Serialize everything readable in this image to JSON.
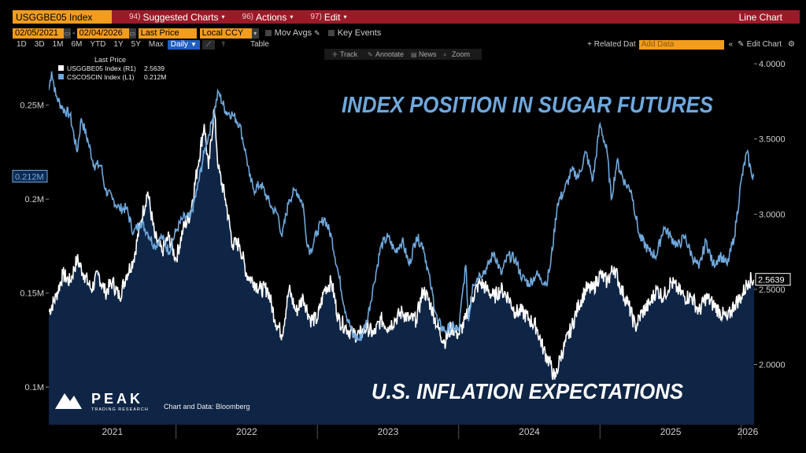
{
  "toolbar": {
    "ticker": "USGGBE05 Index",
    "menus": [
      {
        "num": "94)",
        "label": "Suggested Charts"
      },
      {
        "num": "96)",
        "label": "Actions"
      },
      {
        "num": "97)",
        "label": "Edit"
      }
    ],
    "chart_type": "Line Chart",
    "date_from": "02/05/2021",
    "date_to": "02/04/2026",
    "price_type": "Last Price",
    "currency": "Local CCY",
    "mov_avgs": "Mov Avgs",
    "key_events": "Key Events",
    "periods": [
      "1D",
      "3D",
      "1M",
      "6M",
      "YTD",
      "1Y",
      "5Y",
      "Max"
    ],
    "frequency": "Daily",
    "table_label": "Table",
    "related_data": "Related Dat",
    "add_data_placeholder": "Add Data",
    "edit_chart": "Edit Chart",
    "tools": [
      "Track",
      "Annotate",
      "News",
      "Zoom"
    ]
  },
  "chart_data": {
    "type": "line",
    "title": "INDEX POSITION IN SUGAR FUTURES",
    "subtitle": "U.S. INFLATION EXPECTATIONS",
    "legend_header": "Last Price",
    "source_note": "Chart and Data: Bloomberg",
    "brand": "PEAK",
    "brand_sub": "TRADING RESEARCH",
    "x_labels": [
      "2021",
      "2022",
      "2023",
      "2024",
      "2025",
      "2026"
    ],
    "left_axis": {
      "ticks": [
        "0.1M",
        "0.15M",
        "0.2M",
        "0.25M"
      ],
      "values": [
        0.1,
        0.15,
        0.2,
        0.25
      ],
      "range": [
        0.08,
        0.28
      ]
    },
    "right_axis": {
      "ticks": [
        "2.0000",
        "2.5000",
        "3.0000",
        "3.5000",
        "4.0000"
      ],
      "values": [
        2.0,
        2.5,
        3.0,
        3.5,
        4.0
      ],
      "range": [
        1.6,
        4.1
      ]
    },
    "x_range": [
      2021.1,
      2026.09
    ],
    "series": [
      {
        "name": "USGGBE05 Index (R1)",
        "axis": "right",
        "color": "#ffffff",
        "last_value": "2.5639",
        "points": [
          [
            2021.1,
            2.35
          ],
          [
            2021.15,
            2.45
          ],
          [
            2021.2,
            2.6
          ],
          [
            2021.25,
            2.55
          ],
          [
            2021.3,
            2.7
          ],
          [
            2021.35,
            2.6
          ],
          [
            2021.4,
            2.5
          ],
          [
            2021.45,
            2.6
          ],
          [
            2021.5,
            2.48
          ],
          [
            2021.55,
            2.55
          ],
          [
            2021.6,
            2.45
          ],
          [
            2021.65,
            2.6
          ],
          [
            2021.7,
            2.7
          ],
          [
            2021.75,
            2.95
          ],
          [
            2021.8,
            3.15
          ],
          [
            2021.85,
            2.85
          ],
          [
            2021.9,
            2.75
          ],
          [
            2021.95,
            2.85
          ],
          [
            2022.0,
            2.7
          ],
          [
            2022.05,
            2.9
          ],
          [
            2022.1,
            3.0
          ],
          [
            2022.15,
            3.3
          ],
          [
            2022.2,
            3.6
          ],
          [
            2022.23,
            3.3
          ],
          [
            2022.27,
            3.7
          ],
          [
            2022.3,
            3.3
          ],
          [
            2022.35,
            3.1
          ],
          [
            2022.4,
            2.8
          ],
          [
            2022.45,
            2.8
          ],
          [
            2022.5,
            2.6
          ],
          [
            2022.55,
            2.55
          ],
          [
            2022.6,
            2.5
          ],
          [
            2022.65,
            2.5
          ],
          [
            2022.7,
            2.3
          ],
          [
            2022.75,
            2.2
          ],
          [
            2022.8,
            2.5
          ],
          [
            2022.85,
            2.35
          ],
          [
            2022.9,
            2.45
          ],
          [
            2022.95,
            2.3
          ],
          [
            2023.0,
            2.3
          ],
          [
            2023.05,
            2.5
          ],
          [
            2023.1,
            2.55
          ],
          [
            2023.15,
            2.3
          ],
          [
            2023.2,
            2.25
          ],
          [
            2023.25,
            2.2
          ],
          [
            2023.3,
            2.2
          ],
          [
            2023.35,
            2.25
          ],
          [
            2023.4,
            2.2
          ],
          [
            2023.45,
            2.3
          ],
          [
            2023.5,
            2.25
          ],
          [
            2023.55,
            2.3
          ],
          [
            2023.6,
            2.35
          ],
          [
            2023.65,
            2.3
          ],
          [
            2023.7,
            2.3
          ],
          [
            2023.75,
            2.5
          ],
          [
            2023.8,
            2.4
          ],
          [
            2023.85,
            2.25
          ],
          [
            2023.9,
            2.15
          ],
          [
            2023.95,
            2.25
          ],
          [
            2024.0,
            2.2
          ],
          [
            2024.05,
            2.3
          ],
          [
            2024.1,
            2.45
          ],
          [
            2024.15,
            2.55
          ],
          [
            2024.2,
            2.5
          ],
          [
            2024.25,
            2.45
          ],
          [
            2024.3,
            2.5
          ],
          [
            2024.35,
            2.45
          ],
          [
            2024.4,
            2.35
          ],
          [
            2024.45,
            2.35
          ],
          [
            2024.5,
            2.3
          ],
          [
            2024.55,
            2.25
          ],
          [
            2024.6,
            2.1
          ],
          [
            2024.65,
            2.0
          ],
          [
            2024.68,
            1.9
          ],
          [
            2024.72,
            2.05
          ],
          [
            2024.8,
            2.25
          ],
          [
            2024.85,
            2.4
          ],
          [
            2024.9,
            2.5
          ],
          [
            2024.95,
            2.5
          ],
          [
            2025.0,
            2.6
          ],
          [
            2025.05,
            2.55
          ],
          [
            2025.1,
            2.65
          ],
          [
            2025.15,
            2.5
          ],
          [
            2025.2,
            2.4
          ],
          [
            2025.25,
            2.25
          ],
          [
            2025.3,
            2.35
          ],
          [
            2025.35,
            2.4
          ],
          [
            2025.4,
            2.5
          ],
          [
            2025.45,
            2.45
          ],
          [
            2025.5,
            2.55
          ],
          [
            2025.55,
            2.5
          ],
          [
            2025.6,
            2.45
          ],
          [
            2025.65,
            2.45
          ],
          [
            2025.7,
            2.35
          ],
          [
            2025.75,
            2.45
          ],
          [
            2025.8,
            2.4
          ],
          [
            2025.85,
            2.35
          ],
          [
            2025.9,
            2.3
          ],
          [
            2025.95,
            2.4
          ],
          [
            2026.0,
            2.45
          ],
          [
            2026.05,
            2.56
          ],
          [
            2026.09,
            2.5639
          ]
        ]
      },
      {
        "name": "CSCOSCIN Index (L1)",
        "axis": "left",
        "color": "#6fa8dc",
        "last_value": "0.212M",
        "points": [
          [
            2021.1,
            0.258
          ],
          [
            2021.12,
            0.268
          ],
          [
            2021.15,
            0.255
          ],
          [
            2021.2,
            0.248
          ],
          [
            2021.25,
            0.245
          ],
          [
            2021.3,
            0.225
          ],
          [
            2021.33,
            0.243
          ],
          [
            2021.38,
            0.23
          ],
          [
            2021.42,
            0.218
          ],
          [
            2021.47,
            0.218
          ],
          [
            2021.5,
            0.205
          ],
          [
            2021.55,
            0.2
          ],
          [
            2021.6,
            0.195
          ],
          [
            2021.65,
            0.195
          ],
          [
            2021.7,
            0.182
          ],
          [
            2021.75,
            0.188
          ],
          [
            2021.8,
            0.182
          ],
          [
            2021.85,
            0.175
          ],
          [
            2021.9,
            0.18
          ],
          [
            2021.95,
            0.172
          ],
          [
            2022.0,
            0.183
          ],
          [
            2022.05,
            0.19
          ],
          [
            2022.1,
            0.19
          ],
          [
            2022.15,
            0.205
          ],
          [
            2022.2,
            0.225
          ],
          [
            2022.25,
            0.24
          ],
          [
            2022.3,
            0.257
          ],
          [
            2022.35,
            0.247
          ],
          [
            2022.4,
            0.245
          ],
          [
            2022.45,
            0.24
          ],
          [
            2022.5,
            0.222
          ],
          [
            2022.52,
            0.212
          ],
          [
            2022.55,
            0.205
          ],
          [
            2022.6,
            0.208
          ],
          [
            2022.65,
            0.2
          ],
          [
            2022.68,
            0.195
          ],
          [
            2022.72,
            0.192
          ],
          [
            2022.75,
            0.18
          ],
          [
            2022.8,
            0.2
          ],
          [
            2022.85,
            0.205
          ],
          [
            2022.9,
            0.197
          ],
          [
            2022.92,
            0.18
          ],
          [
            2022.95,
            0.172
          ],
          [
            2023.0,
            0.183
          ],
          [
            2023.05,
            0.19
          ],
          [
            2023.1,
            0.18
          ],
          [
            2023.15,
            0.16
          ],
          [
            2023.2,
            0.14
          ],
          [
            2023.25,
            0.128
          ],
          [
            2023.3,
            0.125
          ],
          [
            2023.35,
            0.135
          ],
          [
            2023.4,
            0.155
          ],
          [
            2023.45,
            0.175
          ],
          [
            2023.5,
            0.18
          ],
          [
            2023.55,
            0.172
          ],
          [
            2023.6,
            0.178
          ],
          [
            2023.65,
            0.165
          ],
          [
            2023.7,
            0.18
          ],
          [
            2023.75,
            0.175
          ],
          [
            2023.8,
            0.155
          ],
          [
            2023.85,
            0.135
          ],
          [
            2023.9,
            0.13
          ],
          [
            2023.95,
            0.132
          ],
          [
            2024.0,
            0.13
          ],
          [
            2024.05,
            0.165
          ],
          [
            2024.07,
            0.135
          ],
          [
            2024.1,
            0.155
          ],
          [
            2024.15,
            0.16
          ],
          [
            2024.2,
            0.163
          ],
          [
            2024.25,
            0.172
          ],
          [
            2024.3,
            0.16
          ],
          [
            2024.35,
            0.17
          ],
          [
            2024.4,
            0.168
          ],
          [
            2024.45,
            0.158
          ],
          [
            2024.5,
            0.155
          ],
          [
            2024.55,
            0.16
          ],
          [
            2024.58,
            0.158
          ],
          [
            2024.62,
            0.155
          ],
          [
            2024.65,
            0.165
          ],
          [
            2024.7,
            0.198
          ],
          [
            2024.75,
            0.205
          ],
          [
            2024.8,
            0.215
          ],
          [
            2024.85,
            0.212
          ],
          [
            2024.9,
            0.225
          ],
          [
            2024.95,
            0.21
          ],
          [
            2025.0,
            0.24
          ],
          [
            2025.05,
            0.225
          ],
          [
            2025.08,
            0.2
          ],
          [
            2025.12,
            0.22
          ],
          [
            2025.18,
            0.208
          ],
          [
            2025.22,
            0.205
          ],
          [
            2025.28,
            0.18
          ],
          [
            2025.35,
            0.172
          ],
          [
            2025.4,
            0.17
          ],
          [
            2025.45,
            0.185
          ],
          [
            2025.5,
            0.18
          ],
          [
            2025.55,
            0.175
          ],
          [
            2025.6,
            0.18
          ],
          [
            2025.65,
            0.17
          ],
          [
            2025.7,
            0.163
          ],
          [
            2025.75,
            0.178
          ],
          [
            2025.8,
            0.165
          ],
          [
            2025.85,
            0.17
          ],
          [
            2025.9,
            0.165
          ],
          [
            2025.95,
            0.18
          ],
          [
            2026.0,
            0.21
          ],
          [
            2026.04,
            0.225
          ],
          [
            2026.07,
            0.214
          ],
          [
            2026.09,
            0.212
          ]
        ]
      }
    ]
  }
}
